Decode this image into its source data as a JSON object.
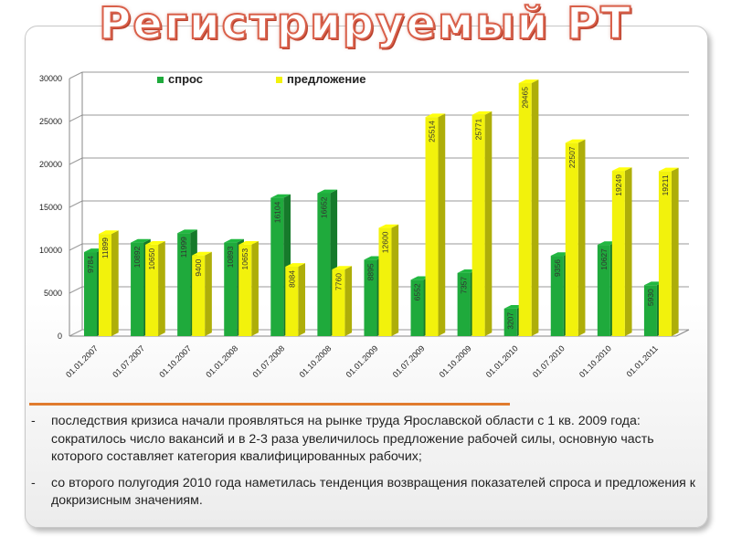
{
  "slide": {
    "title": "Регистрируемый РТ",
    "bullets": [
      {
        "marker": "-",
        "text": "последствия кризиса начали проявляться на рынке труда Ярославской области с 1 кв. 2009 года: сократилось число вакансий и в 2-3 раза увеличилось предложение рабочей силы, основную часть которого составляет категория квалифицированных рабочих;"
      },
      {
        "marker": "-",
        "text": "со второго полугодия 2010 года наметилась тенденция возвращения показателей спроса и предложения к докризисным значениям."
      }
    ],
    "colors": {
      "accent_line": "#e07b2e",
      "title_outline": "#d9604a"
    }
  },
  "chart_data": {
    "type": "bar",
    "title": "",
    "xlabel": "",
    "ylabel": "",
    "ylim": [
      0,
      30000
    ],
    "yticks": [
      "0",
      "5000",
      "10000",
      "15000",
      "20000",
      "25000",
      "30000"
    ],
    "grid": true,
    "legend_position": "top-left",
    "categories": [
      "01.01.2007",
      "01.07.2007",
      "01.10.2007",
      "01.01.2008",
      "01.07.2008",
      "01.10.2008",
      "01.01.2009",
      "01.07.2009",
      "01.10.2009",
      "01.01.2010",
      "01.07.2010",
      "01.10.2010",
      "01.01.2011"
    ],
    "series": [
      {
        "name": "спрос",
        "color": "#1faa3c",
        "values": [
          9784,
          10892,
          11999,
          10893,
          16104,
          16652,
          8895,
          6552,
          7357,
          3207,
          9356,
          10627,
          5930
        ],
        "labels": [
          "9784",
          "10892",
          "11999",
          "10893",
          "16104",
          "16652",
          "8895",
          "6552",
          "7357",
          "3207",
          "9356",
          "10627",
          "5930"
        ]
      },
      {
        "name": "предложение",
        "color": "#f2f20c",
        "values": [
          11899,
          10650,
          9400,
          10653,
          8084,
          7760,
          12600,
          25514,
          25771,
          29465,
          22507,
          19249,
          19211
        ],
        "labels": [
          "11899",
          "10650",
          "9400",
          "10653",
          "8084",
          "7760",
          "12600",
          "25514",
          "25771",
          "29465",
          "22507",
          "19249",
          "19211"
        ]
      }
    ]
  }
}
